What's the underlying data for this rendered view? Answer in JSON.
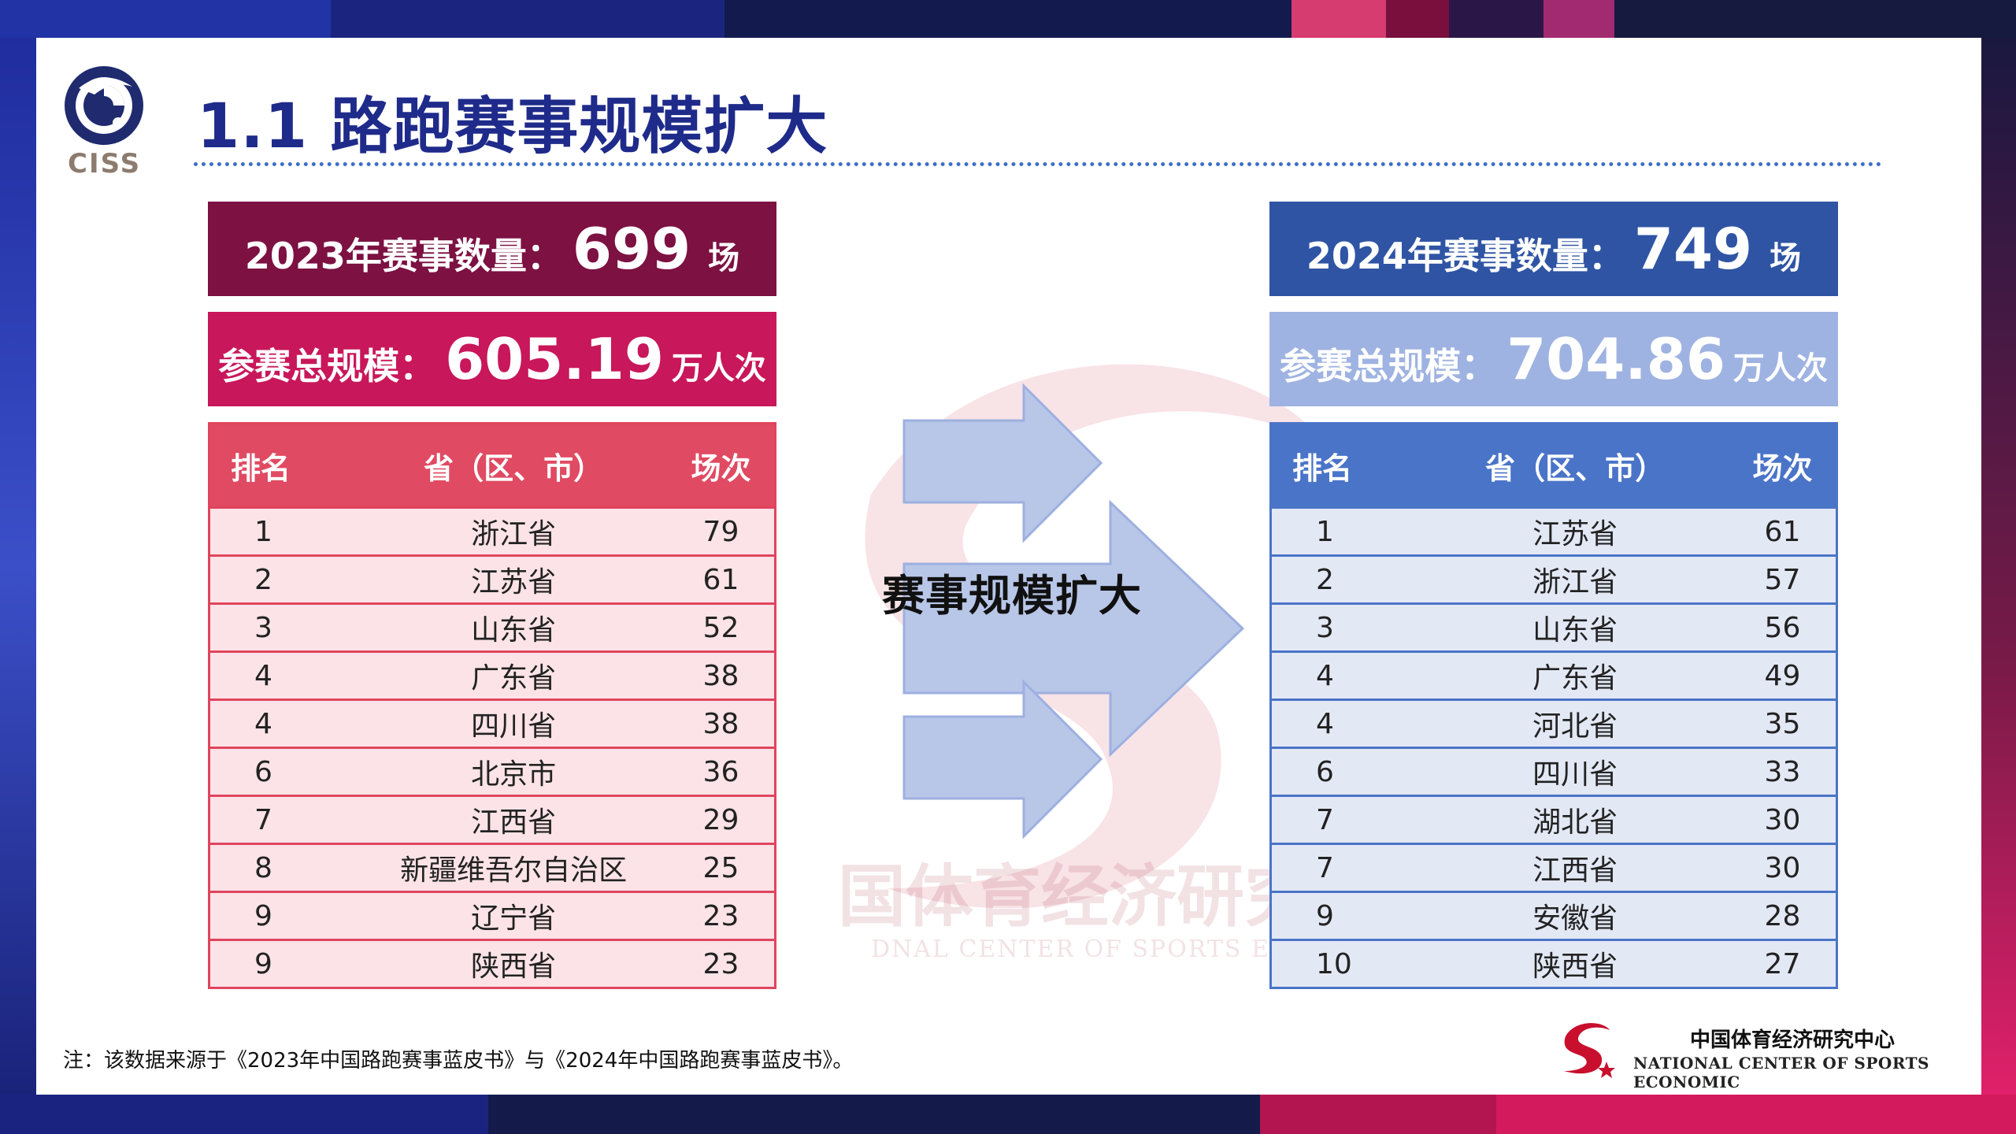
{
  "header": {
    "logo_text": "CISS",
    "title": "1.1 路跑赛事规模扩大"
  },
  "year2023": {
    "count_label": "2023年赛事数量：",
    "count_value": "699",
    "count_unit": "场",
    "scale_label": "参赛总规模：",
    "scale_value": "605.19",
    "scale_unit": "万人次"
  },
  "year2024": {
    "count_label": "2024年赛事数量：",
    "count_value": "749",
    "count_unit": "场",
    "scale_label": "参赛总规模：",
    "scale_value": "704.86",
    "scale_unit": "万人次"
  },
  "table2023": {
    "headers": [
      "排名",
      "省（区、市）",
      "场次"
    ],
    "rows": [
      [
        "1",
        "浙江省",
        "79"
      ],
      [
        "2",
        "江苏省",
        "61"
      ],
      [
        "3",
        "山东省",
        "52"
      ],
      [
        "4",
        "广东省",
        "38"
      ],
      [
        "4",
        "四川省",
        "38"
      ],
      [
        "6",
        "北京市",
        "36"
      ],
      [
        "7",
        "江西省",
        "29"
      ],
      [
        "8",
        "新疆维吾尔自治区",
        "25"
      ],
      [
        "9",
        "辽宁省",
        "23"
      ],
      [
        "9",
        "陕西省",
        "23"
      ]
    ]
  },
  "table2024": {
    "headers": [
      "排名",
      "省（区、市）",
      "场次"
    ],
    "rows": [
      [
        "1",
        "江苏省",
        "61"
      ],
      [
        "2",
        "浙江省",
        "57"
      ],
      [
        "3",
        "山东省",
        "56"
      ],
      [
        "4",
        "广东省",
        "49"
      ],
      [
        "4",
        "河北省",
        "35"
      ],
      [
        "6",
        "四川省",
        "33"
      ],
      [
        "7",
        "湖北省",
        "30"
      ],
      [
        "7",
        "江西省",
        "30"
      ],
      [
        "9",
        "安徽省",
        "28"
      ],
      [
        "10",
        "陕西省",
        "27"
      ]
    ]
  },
  "arrow_label": "赛事规模扩大",
  "watermark": {
    "cn": "国体育经济研究中",
    "en": "DNAL CENTER OF SPORTS ECONOM"
  },
  "footer": {
    "note": "注：该数据来源于《2023年中国路跑赛事蓝皮书》与《2024年中国路跑赛事蓝皮书》。",
    "org_cn": "中国体育经济研究中心",
    "org_en": "NATIONAL CENTER OF SPORTS ECONOMIC"
  },
  "colors": {
    "title": "#1f2b8a",
    "banner2023_count": "#7c1142",
    "banner2023_scale": "#c8175a",
    "table2023_header": "#e04a62",
    "banner2024_count": "#2f54a4",
    "banner2024_scale": "#9fb3e2",
    "table2024_header": "#4a74c8",
    "arrow_fill": "#b8c6e8"
  },
  "icons": {
    "ciss_logo": "ciss-logo-icon",
    "org_logo": "org-logo-icon"
  }
}
